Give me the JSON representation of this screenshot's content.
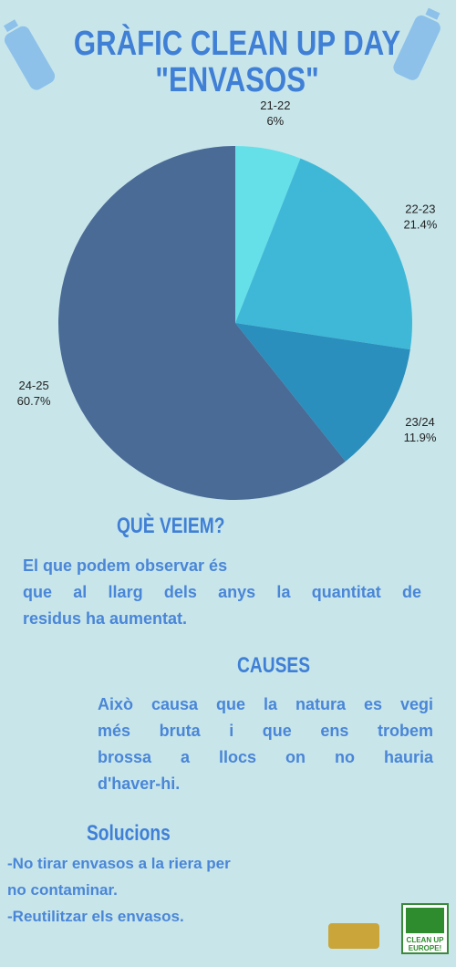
{
  "chart_data": {
    "type": "pie",
    "title": [
      "GRÀFIC CLEAN UP DAY",
      "\"ENVASOS\""
    ],
    "categories": [
      "21-22",
      "22-23",
      "23/24",
      "24-25"
    ],
    "values": [
      6,
      21.4,
      11.9,
      60.7
    ],
    "value_labels": [
      "6%",
      "21.4%",
      "11.9%",
      "60.7%"
    ],
    "colors": [
      "#66e0e8",
      "#3fb8d8",
      "#2a8fbd",
      "#4a6b96"
    ]
  },
  "sections": [
    {
      "heading": "QUÈ VEIEM?",
      "lines": [
        "El que podem observar és",
        "que al llarg dels anys la quantitat de",
        "residus ha aumentat."
      ]
    },
    {
      "heading": "CAUSES",
      "lines": [
        "Això causa que la natura es vegi",
        "més bruta i que ens trobem",
        "brossa a llocs on no hauria",
        "d'haver-hi."
      ]
    },
    {
      "heading": "Solucions",
      "lines": [
        "-No tirar envasos a la riera per",
        "no contaminar.",
        "-Reutilitzar els envasos."
      ]
    }
  ],
  "footer": {
    "logo_text": "CLEAN UP EUROPE!"
  }
}
